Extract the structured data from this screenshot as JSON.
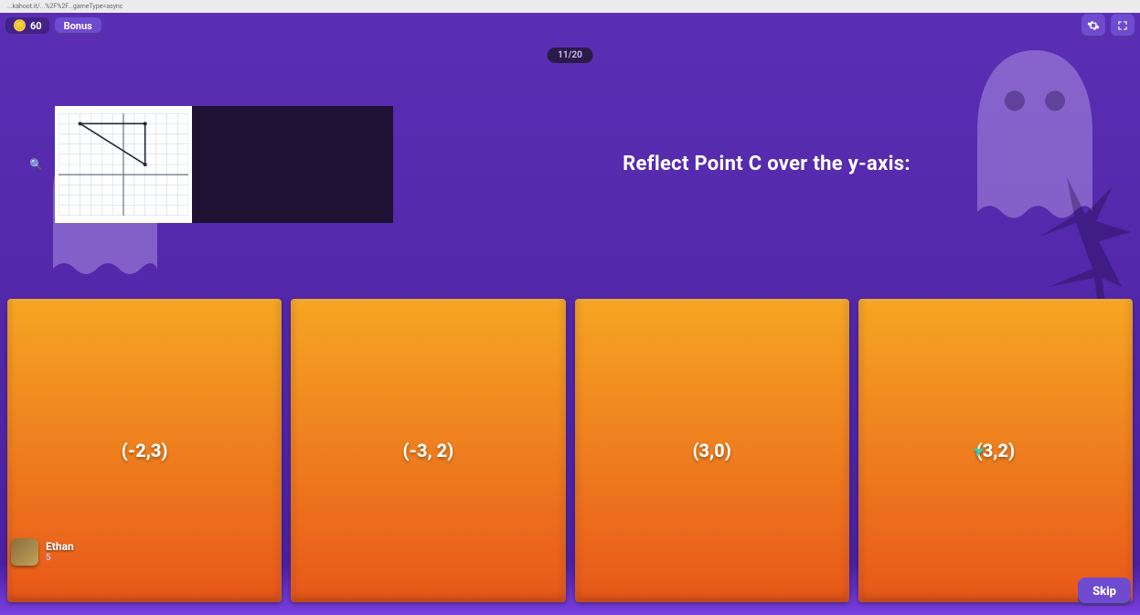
{
  "url_fragment": "...kahoot.it/...%2F%2F...gameType=async",
  "colors": {
    "bg_purple_top": "#5a2fb3",
    "bg_purple_bottom": "#4a1f9e",
    "pill_bg": "#2a1a4a",
    "button_purple": "#6e4bcf",
    "answer_top": "#f6a623",
    "answer_bottom": "#e8571a",
    "bottom_glow": "#7a3fe0",
    "ghost_fill": "rgba(220,200,255,0.35)",
    "tree_fill": "rgba(30,10,60,0.35)"
  },
  "top": {
    "coin_value": "60",
    "bonus_label": "Bonus"
  },
  "progress": {
    "text": "11/20"
  },
  "question": {
    "text": "Reflect Point C over the y-axis:",
    "graph": {
      "xlim": [
        -6,
        6
      ],
      "ylim": [
        -4,
        6
      ],
      "grid_color": "#cfd8e8",
      "axis_color": "#6b7280",
      "triangle": {
        "points": [
          [
            -4,
            5
          ],
          [
            2,
            5
          ],
          [
            2,
            1
          ]
        ],
        "stroke": "#1f2937"
      }
    }
  },
  "answers": [
    {
      "label": "(-2,3)"
    },
    {
      "label": "(-3, 2)"
    },
    {
      "label": "(3,0)"
    },
    {
      "label": "(3,2)",
      "has_cursor": true
    }
  ],
  "player": {
    "name": "Ethan",
    "rank": "5"
  },
  "skip": {
    "label": "Skip"
  }
}
